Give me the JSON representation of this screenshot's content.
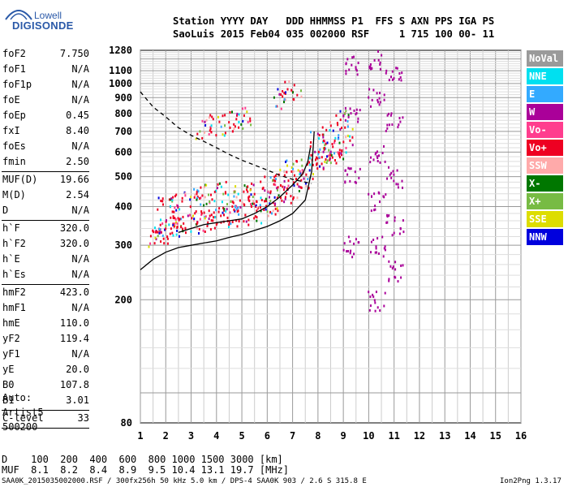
{
  "logo": {
    "line1": "Lowell",
    "line2": "DIGISONDE"
  },
  "header": {
    "row1": "Station YYYY DAY   DDD HHMMSS P1  FFS S AXN PPS IGA PS",
    "row2": "SaoLuis 2015 Feb04 035 002000 RSF     1 715 100 00- 11"
  },
  "params": [
    {
      "k": "foF2",
      "v": "7.750"
    },
    {
      "k": "foF1",
      "v": "N/A"
    },
    {
      "k": "foF1p",
      "v": "N/A"
    },
    {
      "k": "foE",
      "v": "N/A"
    },
    {
      "k": "foEp",
      "v": "0.45"
    },
    {
      "k": "fxI",
      "v": "8.40"
    },
    {
      "k": "foEs",
      "v": "N/A"
    },
    {
      "k": "fmin",
      "v": "2.50"
    },
    {
      "sep": true
    },
    {
      "k": "MUF(D)",
      "v": "19.66"
    },
    {
      "k": "M(D)",
      "v": "2.54"
    },
    {
      "k": "D",
      "v": "N/A"
    },
    {
      "sep": true
    },
    {
      "k": "h`F",
      "v": "320.0"
    },
    {
      "k": "h`F2",
      "v": "320.0"
    },
    {
      "k": "h`E",
      "v": "N/A"
    },
    {
      "k": "h`Es",
      "v": "N/A"
    },
    {
      "sep": true
    },
    {
      "k": "hmF2",
      "v": "423.0"
    },
    {
      "k": "hmF1",
      "v": "N/A"
    },
    {
      "k": "hmE",
      "v": "110.0"
    },
    {
      "k": "yF2",
      "v": "119.4"
    },
    {
      "k": "yF1",
      "v": "N/A"
    },
    {
      "k": "yE",
      "v": "20.0"
    },
    {
      "k": "B0",
      "v": "107.8"
    },
    {
      "k": "B1",
      "v": "3.01"
    },
    {
      "sep": true
    },
    {
      "k": "C-level",
      "v": "33"
    },
    {
      "sep": true
    }
  ],
  "auto": {
    "line1": "Auto:",
    "line2": "Artist5",
    "line3": "500200"
  },
  "legend": [
    {
      "label": "NoVal",
      "color": "#9a9a9a"
    },
    {
      "label": "NNE",
      "color": "#00e0f0"
    },
    {
      "label": "E",
      "color": "#33aaff"
    },
    {
      "label": "W",
      "color": "#aa0099"
    },
    {
      "label": "Vo-",
      "color": "#ff3d8e"
    },
    {
      "label": "Vo+",
      "color": "#ee0022"
    },
    {
      "label": "SSW",
      "color": "#ffaaaa"
    },
    {
      "label": "X-",
      "color": "#007700"
    },
    {
      "label": "X+",
      "color": "#77bb44"
    },
    {
      "label": "SSE",
      "color": "#dddd00"
    },
    {
      "label": "NNW",
      "color": "#0000dd"
    }
  ],
  "bottom": {
    "d_row": "D    100  200  400  600  800 1000 1500 3000 [km]",
    "muf_row": "MUF  8.1  8.2  8.4  8.9  9.5 10.4 13.1 19.7 [MHz]",
    "footer_left": "SAA0K_2015035002000.RSF / 300fx256h 50 kHz 5.0 km / DPS-4 SAA0K 903 / 2.6 S 315.8 E",
    "footer_right": "Ion2Png 1.3.17"
  },
  "chart_data": {
    "type": "scatter",
    "title": "",
    "xlabel": "",
    "ylabel": "",
    "xlim": [
      1,
      16
    ],
    "ylim": [
      80,
      1280
    ],
    "x_ticks": [
      1,
      2,
      3,
      4,
      5,
      6,
      7,
      8,
      9,
      10,
      11,
      12,
      13,
      14,
      15,
      16
    ],
    "y_ticks": [
      80,
      200,
      300,
      400,
      500,
      600,
      700,
      800,
      900,
      1000,
      1100,
      1280
    ],
    "y_scale": "log",
    "grid": true,
    "legend_position": "right",
    "series": [
      {
        "description": "ionogram echo cloud",
        "color": "#ee0022",
        "points": [
          [
            1.6,
            320
          ],
          [
            1.8,
            330
          ],
          [
            2.0,
            340
          ],
          [
            2.3,
            345
          ],
          [
            2.6,
            350
          ],
          [
            3.0,
            355
          ],
          [
            3.4,
            360
          ],
          [
            3.8,
            365
          ],
          [
            4.2,
            370
          ],
          [
            4.6,
            375
          ],
          [
            5.0,
            380
          ],
          [
            5.4,
            385
          ],
          [
            5.8,
            395
          ],
          [
            6.2,
            410
          ],
          [
            6.6,
            430
          ],
          [
            7.0,
            460
          ],
          [
            7.3,
            490
          ],
          [
            7.6,
            530
          ],
          [
            7.9,
            560
          ],
          [
            8.2,
            580
          ],
          [
            8.5,
            600
          ],
          [
            8.8,
            620
          ],
          [
            9.0,
            640
          ],
          [
            2.0,
            400
          ],
          [
            2.5,
            420
          ],
          [
            3.0,
            430
          ],
          [
            3.5,
            440
          ],
          [
            4.0,
            450
          ],
          [
            4.5,
            420
          ],
          [
            5.0,
            440
          ],
          [
            5.5,
            450
          ],
          [
            6.0,
            470
          ],
          [
            6.5,
            500
          ],
          [
            7.0,
            530
          ],
          [
            8.0,
            650
          ],
          [
            8.5,
            700
          ],
          [
            9.0,
            760
          ],
          [
            3.5,
            720
          ],
          [
            4.0,
            740
          ],
          [
            4.5,
            760
          ],
          [
            5.0,
            780
          ],
          [
            6.5,
            900
          ],
          [
            7.0,
            960
          ]
        ]
      },
      {
        "description": "spread echoes near 10.3 and 11 MHz",
        "color": "#aa0099",
        "points": [
          [
            10.3,
            200
          ],
          [
            10.3,
            300
          ],
          [
            10.3,
            420
          ],
          [
            10.3,
            600
          ],
          [
            10.3,
            900
          ],
          [
            10.3,
            1200
          ],
          [
            11.0,
            250
          ],
          [
            11.0,
            350
          ],
          [
            11.0,
            500
          ],
          [
            11.0,
            750
          ],
          [
            11.0,
            1100
          ],
          [
            9.3,
            300
          ],
          [
            9.3,
            500
          ],
          [
            9.3,
            800
          ],
          [
            9.3,
            1150
          ]
        ]
      },
      {
        "description": "trace curve (O-mode)",
        "color": "#000000",
        "line": "solid",
        "points": [
          [
            1.0,
            250
          ],
          [
            1.5,
            270
          ],
          [
            2.0,
            285
          ],
          [
            2.5,
            295
          ],
          [
            3.0,
            300
          ],
          [
            3.5,
            305
          ],
          [
            4.0,
            310
          ],
          [
            4.5,
            318
          ],
          [
            5.0,
            325
          ],
          [
            5.5,
            335
          ],
          [
            6.0,
            345
          ],
          [
            6.5,
            360
          ],
          [
            7.0,
            380
          ],
          [
            7.5,
            420
          ],
          [
            7.75,
            520
          ],
          [
            7.8,
            600
          ],
          [
            7.85,
            700
          ]
        ]
      },
      {
        "description": "trace curve (virtual height)",
        "color": "#000000",
        "line": "solid",
        "points": [
          [
            2.5,
            330
          ],
          [
            3.0,
            340
          ],
          [
            3.5,
            350
          ],
          [
            4.0,
            355
          ],
          [
            4.5,
            360
          ],
          [
            5.0,
            365
          ],
          [
            5.5,
            380
          ],
          [
            6.0,
            400
          ],
          [
            6.5,
            430
          ],
          [
            7.0,
            470
          ],
          [
            7.4,
            510
          ],
          [
            7.6,
            560
          ],
          [
            7.7,
            620
          ]
        ]
      },
      {
        "description": "MUF(D) curve",
        "color": "#000000",
        "line": "dashed",
        "points": [
          [
            1.0,
            940
          ],
          [
            1.5,
            840
          ],
          [
            2.0,
            780
          ],
          [
            2.5,
            720
          ],
          [
            3.0,
            680
          ],
          [
            3.5,
            650
          ],
          [
            4.0,
            620
          ],
          [
            4.5,
            590
          ],
          [
            5.0,
            565
          ],
          [
            5.5,
            545
          ],
          [
            6.0,
            525
          ],
          [
            6.5,
            505
          ],
          [
            7.0,
            490
          ],
          [
            7.5,
            480
          ],
          [
            7.75,
            475
          ]
        ]
      }
    ]
  }
}
